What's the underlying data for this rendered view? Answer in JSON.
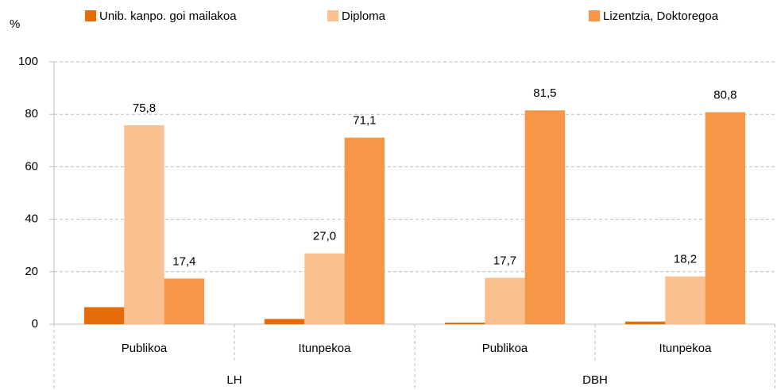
{
  "chart_data": {
    "type": "bar",
    "y_label": "%",
    "categories": [
      "Publikoa",
      "Itunpekoa",
      "Publikoa",
      "Itunpekoa"
    ],
    "groups": [
      "LH",
      "DBH"
    ],
    "series": [
      {
        "name": "Unib. kanpo. goi mailakoa",
        "color": "#e46c0a",
        "values": [
          6.5,
          2.0,
          0.6,
          1.0
        ]
      },
      {
        "name": "Diploma",
        "color": "#fac090",
        "values": [
          75.8,
          27.0,
          17.7,
          18.2
        ],
        "value_labels": [
          "75,8",
          "27,0",
          "17,7",
          "18,2"
        ]
      },
      {
        "name": "Lizentzia, Doktoregoa",
        "color": "#f79646",
        "values": [
          17.4,
          71.1,
          81.5,
          80.8
        ],
        "value_labels": [
          "17,4",
          "71,1",
          "81,5",
          "80,8"
        ]
      }
    ],
    "ylim": [
      0,
      100
    ],
    "yticks": [
      0,
      20,
      40,
      60,
      80,
      100
    ],
    "grid": true,
    "legend": "top"
  }
}
